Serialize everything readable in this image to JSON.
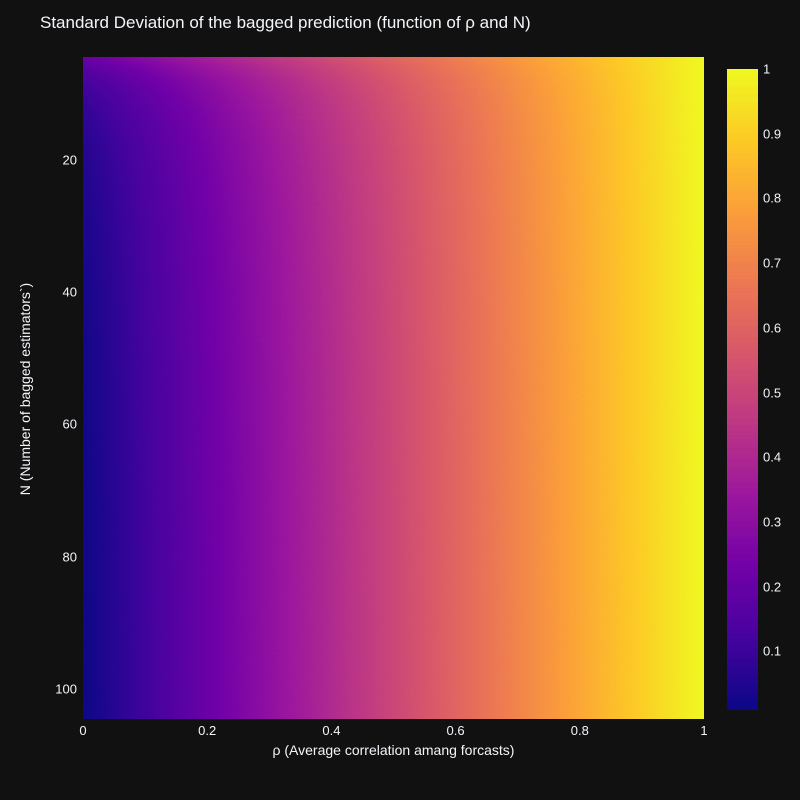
{
  "page": {
    "background": "#111111",
    "font_color": "#f2f5fa"
  },
  "chart_data": {
    "type": "heatmap",
    "title": "Standard Deviation of the bagged prediction (function of ρ and N)",
    "xlabel": "ρ (Average correlation amang forcasts)",
    "ylabel": "N (Number of bagged estimators`)",
    "x_range": [
      0,
      1
    ],
    "y_range": [
      4.5,
      104.5
    ],
    "y_axis_reversed": true,
    "grid_on": false,
    "legend": "colorbar-right",
    "x_ticks": [
      {
        "value": 0,
        "label": "0"
      },
      {
        "value": 0.2,
        "label": "0.2"
      },
      {
        "value": 0.4,
        "label": "0.4"
      },
      {
        "value": 0.6,
        "label": "0.6"
      },
      {
        "value": 0.8,
        "label": "0.8"
      },
      {
        "value": 1,
        "label": "1"
      }
    ],
    "y_ticks": [
      {
        "value": 20,
        "label": "20"
      },
      {
        "value": 40,
        "label": "40"
      },
      {
        "value": 60,
        "label": "60"
      },
      {
        "value": 80,
        "label": "80"
      },
      {
        "value": 100,
        "label": "100"
      }
    ],
    "colorbar_ticks": [
      {
        "value": 1.0,
        "label": "1"
      },
      {
        "value": 0.9,
        "label": "0.9"
      },
      {
        "value": 0.8,
        "label": "0.8"
      },
      {
        "value": 0.7,
        "label": "0.7"
      },
      {
        "value": 0.6,
        "label": "0.6"
      },
      {
        "value": 0.5,
        "label": "0.5"
      },
      {
        "value": 0.4,
        "label": "0.4"
      },
      {
        "value": 0.3,
        "label": "0.3"
      },
      {
        "value": 0.2,
        "label": "0.2"
      },
      {
        "value": 0.1,
        "label": "0.1"
      }
    ],
    "zmin": 0.0096,
    "zmax": 1.0,
    "colorscale": {
      "name": "plasma",
      "stops": [
        "#0d0887",
        "#46039f",
        "#7201a8",
        "#9c179e",
        "#bd3786",
        "#d8576b",
        "#ed7953",
        "#fb9f3a",
        "#fdca26",
        "#f0f921"
      ]
    },
    "grid": {
      "x": [
        0,
        0.1,
        0.2,
        0.3,
        0.4,
        0.5,
        0.6,
        0.7,
        0.8,
        0.9,
        1.0
      ],
      "N": [
        5,
        6,
        8,
        10,
        13,
        17,
        22,
        30,
        40,
        55,
        75,
        104
      ],
      "z": [
        [
          0.2,
          0.28,
          0.36,
          0.44,
          0.52,
          0.6,
          0.68,
          0.76,
          0.84,
          0.92,
          1.0
        ],
        [
          0.1667,
          0.25,
          0.3333,
          0.4167,
          0.5,
          0.5833,
          0.6667,
          0.75,
          0.8333,
          0.9167,
          1.0
        ],
        [
          0.125,
          0.2125,
          0.3,
          0.3875,
          0.475,
          0.5625,
          0.65,
          0.7375,
          0.825,
          0.9125,
          1.0
        ],
        [
          0.1,
          0.19,
          0.28,
          0.37,
          0.46,
          0.55,
          0.64,
          0.73,
          0.82,
          0.91,
          1.0
        ],
        [
          0.0769,
          0.1692,
          0.2615,
          0.3538,
          0.4462,
          0.5385,
          0.6308,
          0.7231,
          0.8154,
          0.9077,
          1.0
        ],
        [
          0.0588,
          0.1529,
          0.2471,
          0.3412,
          0.4353,
          0.5294,
          0.6235,
          0.7176,
          0.8118,
          0.9059,
          1.0
        ],
        [
          0.0455,
          0.1409,
          0.2364,
          0.3318,
          0.4273,
          0.5227,
          0.6182,
          0.7136,
          0.8091,
          0.9045,
          1.0
        ],
        [
          0.0333,
          0.13,
          0.2267,
          0.3233,
          0.42,
          0.5167,
          0.6133,
          0.71,
          0.8067,
          0.9033,
          1.0
        ],
        [
          0.025,
          0.1225,
          0.22,
          0.3175,
          0.415,
          0.5125,
          0.61,
          0.7075,
          0.805,
          0.9025,
          1.0
        ],
        [
          0.0182,
          0.1164,
          0.2145,
          0.3127,
          0.4109,
          0.5091,
          0.6073,
          0.7055,
          0.8036,
          0.9018,
          1.0
        ],
        [
          0.0133,
          0.112,
          0.2107,
          0.3093,
          0.408,
          0.5067,
          0.6053,
          0.704,
          0.8027,
          0.9013,
          1.0
        ],
        [
          0.0096,
          0.1087,
          0.2077,
          0.3067,
          0.4058,
          0.5048,
          0.6038,
          0.7029,
          0.8019,
          0.901,
          1.0
        ]
      ]
    }
  }
}
